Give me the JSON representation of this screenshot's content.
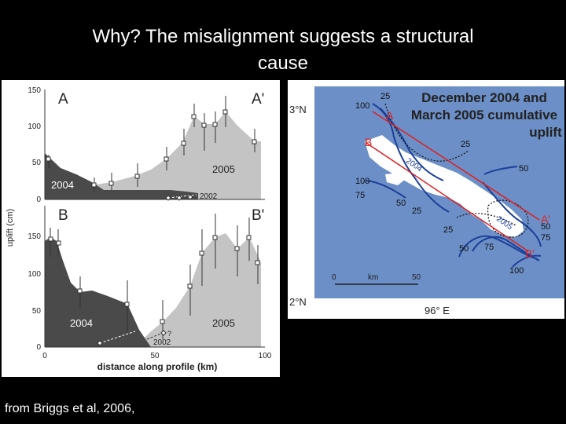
{
  "slide": {
    "title_line1": "Why? The misalignment suggests a structural",
    "title_line2": "cause",
    "credit": "from Briggs et al, 2006,"
  },
  "profile_figure": {
    "y_axis_label": "uplift (cm)",
    "x_axis_label": "distance along profile (km)",
    "x_ticks": [
      "0",
      "50",
      "100"
    ],
    "top_panel": {
      "start_label": "A",
      "end_label": "A'",
      "y_ticks": [
        "150",
        "100",
        "50",
        "0"
      ],
      "label_2004": "2004",
      "label_2005": "2005",
      "label_2002": "2002"
    },
    "bottom_panel": {
      "start_label": "B",
      "end_label": "B'",
      "y_ticks": [
        "150",
        "100",
        "50",
        "0"
      ],
      "label_2004": "2004",
      "label_2005": "2005",
      "label_2002": "2002",
      "question_mark": "?"
    },
    "colors": {
      "uplift_2004": "#4a4a4a",
      "uplift_2005": "#c4c4c4"
    }
  },
  "map_figure": {
    "title_line1": "December 2004 and",
    "title_line2": "March 2005 cumulative",
    "title_line3": "uplift",
    "lat_top": "3°N",
    "lat_bottom": "2°N",
    "lon_label": "96° E",
    "scale_start": "0",
    "scale_unit": "km",
    "scale_end": "50",
    "profile_labels": {
      "a": "A",
      "b": "B",
      "a_prime": "A'",
      "b_prime": "B'"
    },
    "year_labels": {
      "y2004": "2004",
      "y2005": "2005"
    },
    "contour_labels": [
      "100",
      "25",
      "25",
      "50",
      "100",
      "75",
      "50",
      "25",
      "25",
      "50",
      "75",
      "100",
      "75",
      "50"
    ],
    "colors": {
      "sea": "#6b8fc6",
      "land": "#ffffff",
      "contour": "#1c3f99",
      "profile_line": "#e02020"
    }
  }
}
